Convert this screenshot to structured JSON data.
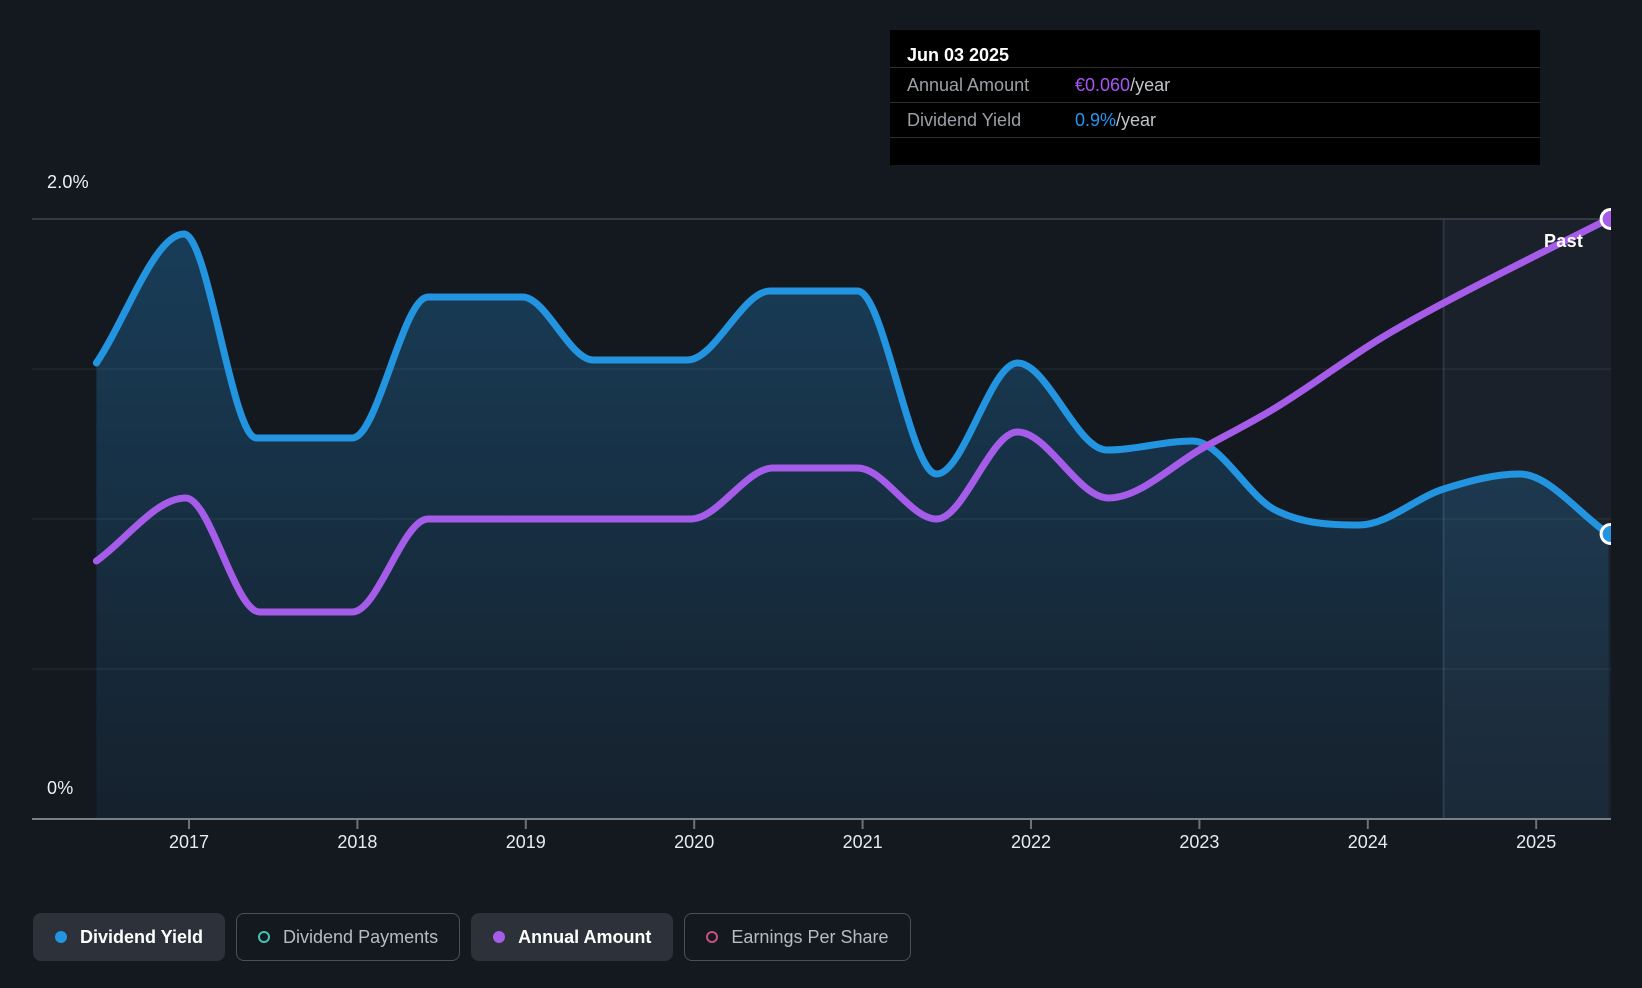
{
  "page": {
    "background": "#14181f"
  },
  "tooltip": {
    "title": "Jun 03 2025",
    "rows": [
      {
        "label": "Annual Amount",
        "value": "€0.060",
        "suffix": "/year",
        "value_color": "#a855f7"
      },
      {
        "label": "Dividend Yield",
        "value": "0.9%",
        "suffix": "/year",
        "value_color": "#2196f3"
      }
    ]
  },
  "legend": {
    "items": [
      {
        "label": "Dividend Yield",
        "marker": "filled-dot",
        "color": "#2394df",
        "active": true
      },
      {
        "label": "Dividend Payments",
        "marker": "open-circle",
        "color": "#45c4b5",
        "active": false
      },
      {
        "label": "Annual Amount",
        "marker": "filled-dot",
        "color": "#a55ce8",
        "active": true
      },
      {
        "label": "Earnings Per Share",
        "marker": "open-circle",
        "color": "#c74f86",
        "active": false
      }
    ]
  },
  "chart_data": {
    "type": "area",
    "title": "Dividend history",
    "x_axis": {
      "ticks": [
        "2017",
        "2018",
        "2019",
        "2020",
        "2021",
        "2022",
        "2023",
        "2024",
        "2025"
      ],
      "tick_years": [
        2017,
        2018,
        2019,
        2020,
        2021,
        2022,
        2023,
        2024,
        2025
      ],
      "range_years": [
        2016.4,
        2025.47
      ]
    },
    "y_axis": {
      "top_label": "2.0%",
      "zero_label": "0%",
      "gridlines_pct": [
        2.0,
        1.5,
        1.0,
        0.5,
        0.0
      ],
      "range_pct": [
        0,
        2.17
      ],
      "grid_top_color": "#3f4650",
      "grid_mid_color": "rgba(255,255,255,0.08)",
      "axis_color": "#7a7f87"
    },
    "past_band": {
      "label": "Past",
      "from_year": 2024.45,
      "to_year": 2025.47,
      "fill": "rgba(140,180,230,0.06)",
      "edge": "rgba(170,200,240,0.14)"
    },
    "series": [
      {
        "name": "Dividend Yield",
        "color": "#2394df",
        "area_fill": true,
        "area_fill_top": "rgba(35,148,223,0.30)",
        "area_fill_bottom": "rgba(35,148,223,0.07)",
        "end_marker": true,
        "unit": "percent_per_year",
        "end_value_label": "0.9%/year",
        "points": [
          [
            2016.45,
            1.52
          ],
          [
            2016.97,
            1.95
          ],
          [
            2017.4,
            1.27
          ],
          [
            2017.97,
            1.27
          ],
          [
            2018.42,
            1.74
          ],
          [
            2018.98,
            1.74
          ],
          [
            2019.4,
            1.53
          ],
          [
            2019.96,
            1.53
          ],
          [
            2020.45,
            1.76
          ],
          [
            2020.97,
            1.76
          ],
          [
            2021.44,
            1.15
          ],
          [
            2021.92,
            1.52
          ],
          [
            2022.45,
            1.23
          ],
          [
            2022.96,
            1.26
          ],
          [
            2023.45,
            1.03
          ],
          [
            2023.95,
            0.98
          ],
          [
            2024.45,
            1.1
          ],
          [
            2024.9,
            1.15
          ],
          [
            2025.43,
            0.95
          ]
        ]
      },
      {
        "name": "Annual Amount",
        "color": "#a55ce8",
        "area_fill": false,
        "end_marker": true,
        "unit": "eur_per_year",
        "end_value_label": "€0.060/year",
        "scale_note": "plotted on yield axis: 2.0 axis units = €0.060/year",
        "points": [
          [
            2016.45,
            0.86
          ],
          [
            2016.98,
            1.07
          ],
          [
            2017.42,
            0.69
          ],
          [
            2017.97,
            0.69
          ],
          [
            2018.42,
            1.0
          ],
          [
            2019.98,
            1.0
          ],
          [
            2020.47,
            1.17
          ],
          [
            2020.97,
            1.17
          ],
          [
            2021.44,
            1.0
          ],
          [
            2021.92,
            1.29
          ],
          [
            2022.46,
            1.07
          ],
          [
            2023.03,
            1.24
          ],
          [
            2023.45,
            1.37
          ],
          [
            2024.07,
            1.6
          ],
          [
            2024.45,
            1.72
          ],
          [
            2025.43,
            2.0
          ]
        ]
      }
    ]
  }
}
